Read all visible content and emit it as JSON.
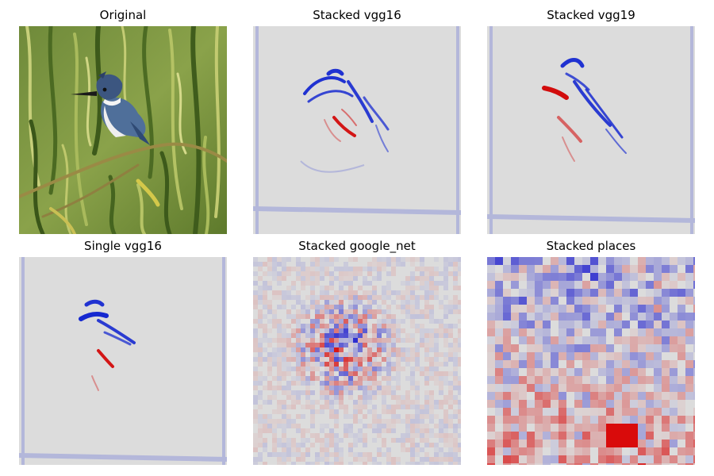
{
  "figure": {
    "panels": [
      {
        "id": "p1",
        "title": "Original"
      },
      {
        "id": "p2",
        "title": "Stacked vgg16"
      },
      {
        "id": "p3",
        "title": "Stacked vgg19"
      },
      {
        "id": "p4",
        "title": "Single vgg16"
      },
      {
        "id": "p5",
        "title": "Stacked google_net"
      },
      {
        "id": "p6",
        "title": "Stacked places"
      }
    ]
  },
  "colors": {
    "heatmap_background": "#dcdcdc",
    "positive": "#cc0000",
    "negative": "#0000cc",
    "foliage_dark": "#3f5a1f",
    "foliage_light": "#b9c468"
  }
}
